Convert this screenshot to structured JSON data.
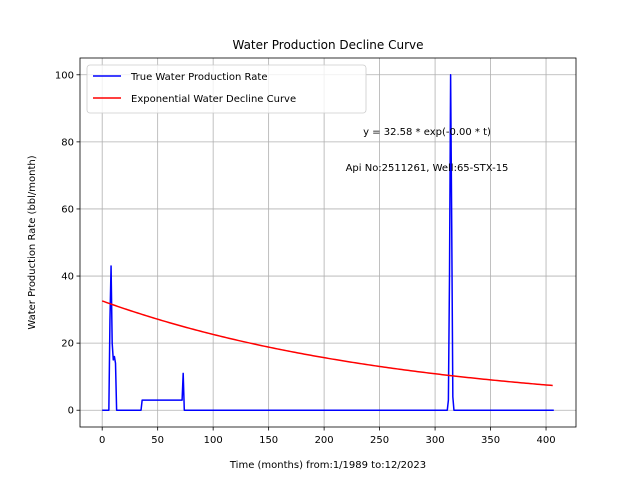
{
  "chart_data": {
    "type": "line",
    "title": "Water Production Decline Curve",
    "xlabel": "Time (months) from:1/1989 to:12/2023",
    "ylabel": "Water Production Rate (bbl/month)",
    "xlim": [
      -20,
      427
    ],
    "ylim": [
      -5,
      105
    ],
    "xticks": [
      0,
      50,
      100,
      150,
      200,
      250,
      300,
      350,
      400
    ],
    "yticks": [
      0,
      20,
      40,
      60,
      80,
      100
    ],
    "grid": true,
    "legend_position": "top-left",
    "annotations": [
      "y = 32.58 * exp(-0.00 * t)",
      "Api No:2511261, Well:65-STX-15"
    ],
    "series": [
      {
        "name": "True Water Production Rate",
        "color": "#0000ff",
        "x": [
          0,
          6,
          7,
          8,
          9,
          10,
          11,
          12,
          13,
          14,
          35,
          36,
          72,
          73,
          74,
          75,
          311,
          312,
          313,
          314,
          315,
          316,
          317,
          318,
          407
        ],
        "y": [
          0,
          0,
          27,
          43,
          20,
          15,
          16,
          14,
          0,
          0,
          0,
          3,
          3,
          11,
          0,
          0,
          0,
          3,
          40,
          100,
          55,
          4,
          0,
          0,
          0
        ]
      },
      {
        "name": "Exponential Water Decline Curve",
        "color": "#ff0000",
        "model": {
          "a": 32.58,
          "b": 0.00366
        },
        "x_start": 0,
        "x_end": 407
      }
    ]
  }
}
